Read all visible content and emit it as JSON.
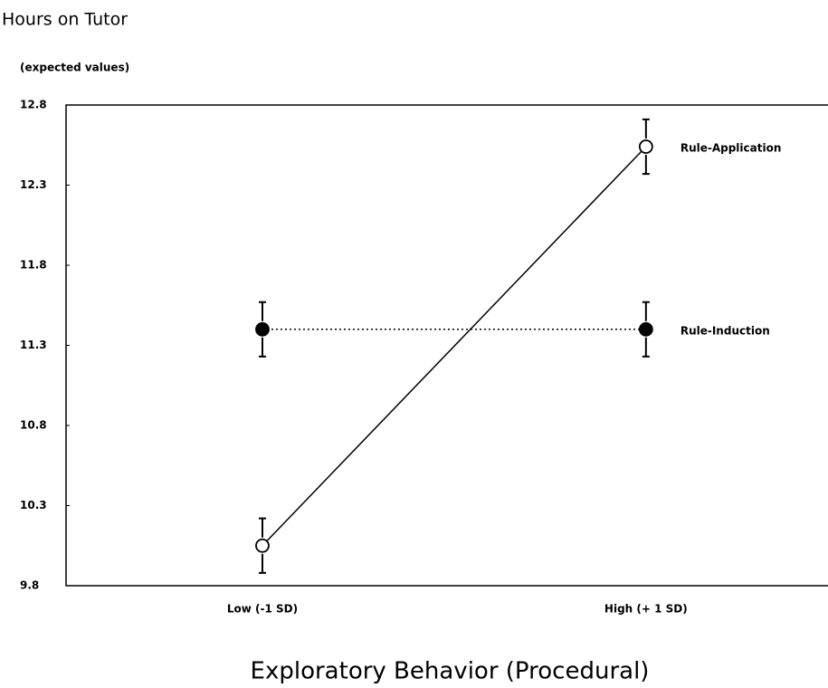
{
  "chart_data": {
    "type": "line",
    "title": "Hours on Tutor",
    "subtitle": "(expected values)",
    "x_label": "Exploratory Behavior (Procedural)",
    "categories": [
      "Low (-1 SD)",
      "High (+ 1 SD)"
    ],
    "series": [
      {
        "name": "Rule-Application",
        "color": "#000000",
        "marker": "open",
        "line_style": "solid",
        "values": [
          10.05,
          12.54
        ],
        "errors": [
          0.17,
          0.17
        ]
      },
      {
        "name": "Rule-Induction",
        "color": "#000000",
        "marker": "filled",
        "line_style": "dotted",
        "values": [
          11.4,
          11.4
        ],
        "errors": [
          0.17,
          0.17
        ]
      }
    ],
    "ylim": [
      9.8,
      12.8
    ],
    "yticks": [
      9.8,
      10.3,
      10.8,
      11.3,
      11.8,
      12.3,
      12.8
    ]
  }
}
